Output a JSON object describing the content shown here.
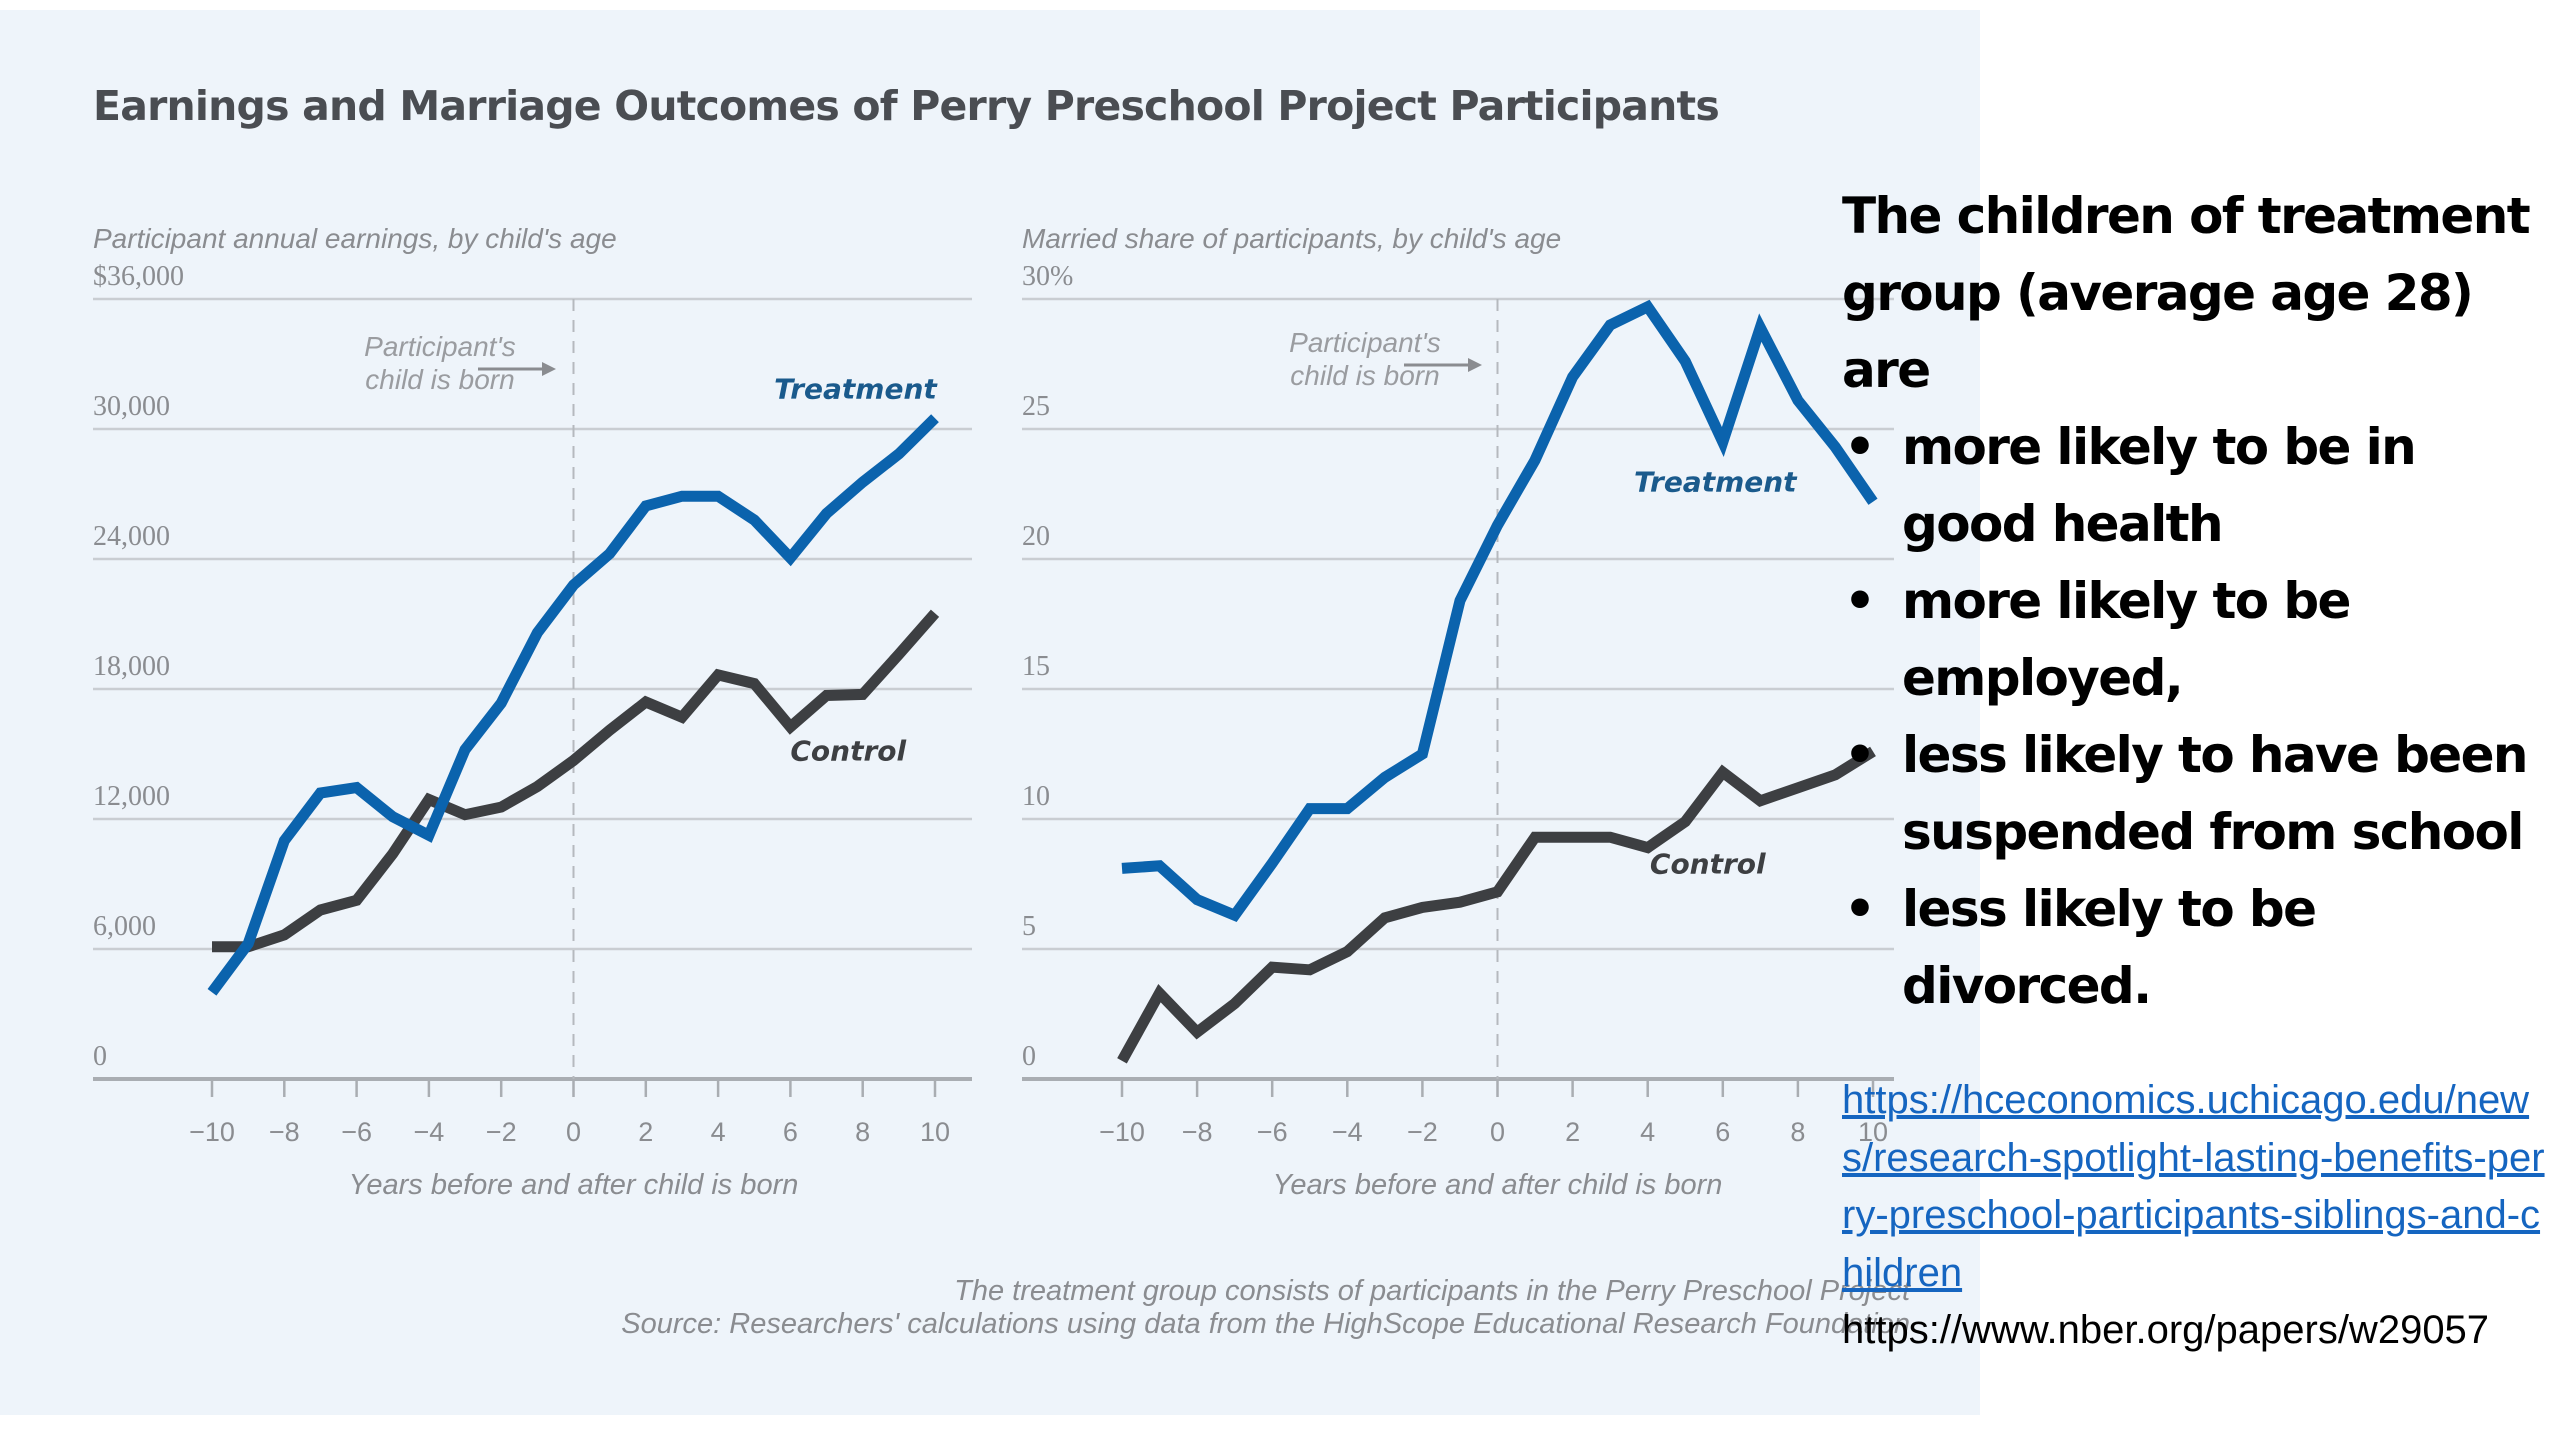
{
  "figure": {
    "title": "Earnings and Marriage Outcomes of Perry Preschool Project Participants",
    "footnote_lines": [
      "The treatment group consists of participants in the Perry Preschool Project",
      "Source: Researchers' calculations using data from the HighScope Educational Research Foundation"
    ]
  },
  "colors": {
    "treatment": "#0b63ad",
    "control": "#3d3f42",
    "grid": "#c9cdd2",
    "panel_bg": "#eef4fa",
    "link": "#1565c0"
  },
  "chart_data": [
    {
      "type": "line",
      "title": "Participant annual earnings, by child's age",
      "xlabel": "Years before and after child is born",
      "ylabel": "",
      "ylim": [
        0,
        36000
      ],
      "xlim": [
        -10,
        10
      ],
      "yticks": [
        0,
        6000,
        12000,
        18000,
        24000,
        30000,
        36000
      ],
      "ytick_labels": [
        "0",
        "6,000",
        "12,000",
        "18,000",
        "24,000",
        "30,000",
        "$36,000"
      ],
      "xticks": [
        -10,
        -8,
        -6,
        -4,
        -2,
        0,
        2,
        4,
        6,
        8,
        10
      ],
      "xtick_labels": [
        "−10",
        "−8",
        "−6",
        "−4",
        "−2",
        "0",
        "2",
        "4",
        "6",
        "8",
        "10"
      ],
      "grid": true,
      "annotation": {
        "lines": [
          "Participant's",
          "child is born"
        ],
        "x": 0
      },
      "x": [
        -10,
        -9,
        -8,
        -7,
        -6,
        -5,
        -4,
        -3,
        -2,
        -1,
        0,
        1,
        2,
        3,
        4,
        5,
        6,
        7,
        8,
        9,
        10
      ],
      "series": [
        {
          "name": "Treatment",
          "label_x": 7.8,
          "label_y": 31400,
          "values": [
            4000,
            6250,
            11000,
            13200,
            13450,
            12100,
            11250,
            15200,
            17350,
            20600,
            22800,
            24250,
            26450,
            26900,
            26900,
            25800,
            24050,
            26100,
            27550,
            28850,
            30500
          ]
        },
        {
          "name": "Control",
          "label_x": 7.6,
          "label_y": 14700,
          "values": [
            6100,
            6100,
            6650,
            7800,
            8250,
            10400,
            12900,
            12200,
            12550,
            13500,
            14700,
            16100,
            17400,
            16700,
            18650,
            18250,
            16250,
            17700,
            17750,
            19600,
            21500
          ]
        }
      ]
    },
    {
      "type": "line",
      "title": "Married share of participants, by child's age",
      "xlabel": "Years before and after child is born",
      "ylabel": "",
      "ylim": [
        0,
        30
      ],
      "xlim": [
        -10,
        10
      ],
      "yticks": [
        0,
        5,
        10,
        15,
        20,
        25,
        30
      ],
      "ytick_labels": [
        "0",
        "5",
        "10",
        "15",
        "20",
        "25",
        "30%"
      ],
      "xticks": [
        -10,
        -8,
        -6,
        -4,
        -2,
        0,
        2,
        4,
        6,
        8,
        10
      ],
      "xtick_labels": [
        "−10",
        "−8",
        "−6",
        "−4",
        "−2",
        "0",
        "2",
        "4",
        "6",
        "8",
        "10"
      ],
      "grid": true,
      "annotation": {
        "lines": [
          "Participant's",
          "child is born"
        ],
        "x": 0
      },
      "x": [
        -10,
        -9,
        -8,
        -7,
        -6,
        -5,
        -4,
        -3,
        -2,
        -1,
        0,
        1,
        2,
        3,
        4,
        5,
        6,
        7,
        8,
        9,
        10
      ],
      "series": [
        {
          "name": "Treatment",
          "label_x": 5.8,
          "label_y": 22.6,
          "values": [
            8.1,
            8.2,
            6.9,
            6.3,
            8.3,
            10.4,
            10.4,
            11.6,
            12.5,
            18.4,
            21.3,
            23.8,
            27.0,
            29.0,
            29.7,
            27.6,
            24.5,
            28.9,
            26.1,
            24.3,
            22.2
          ]
        },
        {
          "name": "Control",
          "label_x": 5.6,
          "label_y": 7.9,
          "values": [
            0.7,
            3.3,
            1.8,
            2.9,
            4.3,
            4.2,
            4.9,
            6.2,
            6.6,
            6.8,
            7.2,
            9.3,
            9.3,
            9.3,
            8.9,
            9.9,
            11.8,
            10.7,
            11.2,
            11.7,
            12.6
          ]
        }
      ]
    }
  ],
  "side_text": {
    "intro": "The children of treatment group (average age 28) are",
    "bullet_glyph": "•",
    "bullets": [
      "more likely to be in good health",
      "more likely to be employed,",
      "less likely to have been suspended from school",
      "less likely to be divorced."
    ]
  },
  "links": {
    "primary": "https://hceconomics.uchicago.edu/news/research-spotlight-lasting-benefits-perry-preschool-participants-siblings-and-children",
    "secondary": "https://www.nber.org/papers/w29057"
  }
}
